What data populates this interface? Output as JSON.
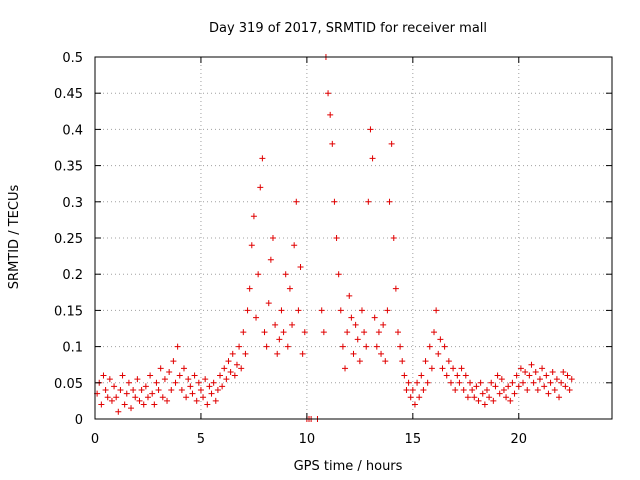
{
  "chart_data": {
    "type": "scatter",
    "title": "Day 319 of 2017, SRMTID for receiver mall",
    "xlabel": "GPS time / hours",
    "ylabel": "SRMTID / TECUs",
    "xlim": [
      0,
      24.4
    ],
    "ylim": [
      0,
      0.5
    ],
    "x_ticks": [
      "0",
      "5",
      "10",
      "15",
      "20"
    ],
    "x_tick_values": [
      0,
      5,
      10,
      15,
      20
    ],
    "y_ticks": [
      "0",
      "0.05",
      "0.1",
      "0.15",
      "0.2",
      "0.25",
      "0.3",
      "0.35",
      "0.4",
      "0.45",
      "0.5"
    ],
    "y_tick_values": [
      0,
      0.05,
      0.1,
      0.15,
      0.2,
      0.25,
      0.3,
      0.35,
      0.4,
      0.45,
      0.5
    ],
    "grid": true,
    "marker": "+",
    "series_color": "#e00000",
    "series": [
      {
        "name": "SRMTID",
        "points": [
          [
            0.1,
            0.035
          ],
          [
            0.2,
            0.05
          ],
          [
            0.3,
            0.02
          ],
          [
            0.4,
            0.06
          ],
          [
            0.5,
            0.04
          ],
          [
            0.6,
            0.03
          ],
          [
            0.7,
            0.055
          ],
          [
            0.8,
            0.025
          ],
          [
            0.9,
            0.045
          ],
          [
            1.0,
            0.03
          ],
          [
            1.1,
            0.01
          ],
          [
            1.2,
            0.04
          ],
          [
            1.3,
            0.06
          ],
          [
            1.4,
            0.02
          ],
          [
            1.5,
            0.035
          ],
          [
            1.6,
            0.05
          ],
          [
            1.7,
            0.015
          ],
          [
            1.8,
            0.04
          ],
          [
            1.9,
            0.03
          ],
          [
            2.0,
            0.055
          ],
          [
            2.1,
            0.025
          ],
          [
            2.2,
            0.04
          ],
          [
            2.3,
            0.02
          ],
          [
            2.4,
            0.045
          ],
          [
            2.5,
            0.03
          ],
          [
            2.6,
            0.06
          ],
          [
            2.7,
            0.035
          ],
          [
            2.8,
            0.02
          ],
          [
            2.9,
            0.05
          ],
          [
            3.0,
            0.04
          ],
          [
            3.1,
            0.07
          ],
          [
            3.2,
            0.03
          ],
          [
            3.3,
            0.055
          ],
          [
            3.4,
            0.025
          ],
          [
            3.5,
            0.065
          ],
          [
            3.6,
            0.04
          ],
          [
            3.7,
            0.08
          ],
          [
            3.8,
            0.05
          ],
          [
            3.9,
            0.1
          ],
          [
            4.0,
            0.06
          ],
          [
            4.1,
            0.04
          ],
          [
            4.2,
            0.07
          ],
          [
            4.3,
            0.03
          ],
          [
            4.4,
            0.055
          ],
          [
            4.5,
            0.045
          ],
          [
            4.6,
            0.035
          ],
          [
            4.7,
            0.06
          ],
          [
            4.8,
            0.025
          ],
          [
            4.9,
            0.05
          ],
          [
            5.0,
            0.04
          ],
          [
            5.1,
            0.03
          ],
          [
            5.2,
            0.055
          ],
          [
            5.3,
            0.02
          ],
          [
            5.4,
            0.045
          ],
          [
            5.5,
            0.035
          ],
          [
            5.6,
            0.05
          ],
          [
            5.7,
            0.025
          ],
          [
            5.8,
            0.04
          ],
          [
            5.9,
            0.06
          ],
          [
            6.0,
            0.045
          ],
          [
            6.1,
            0.07
          ],
          [
            6.2,
            0.055
          ],
          [
            6.3,
            0.08
          ],
          [
            6.4,
            0.065
          ],
          [
            6.5,
            0.09
          ],
          [
            6.6,
            0.06
          ],
          [
            6.7,
            0.075
          ],
          [
            6.8,
            0.1
          ],
          [
            6.9,
            0.07
          ],
          [
            7.0,
            0.12
          ],
          [
            7.1,
            0.09
          ],
          [
            7.2,
            0.15
          ],
          [
            7.3,
            0.18
          ],
          [
            7.4,
            0.24
          ],
          [
            7.5,
            0.28
          ],
          [
            7.6,
            0.14
          ],
          [
            7.7,
            0.2
          ],
          [
            7.8,
            0.32
          ],
          [
            7.9,
            0.36
          ],
          [
            8.0,
            0.12
          ],
          [
            8.1,
            0.1
          ],
          [
            8.2,
            0.16
          ],
          [
            8.3,
            0.22
          ],
          [
            8.4,
            0.25
          ],
          [
            8.5,
            0.13
          ],
          [
            8.6,
            0.09
          ],
          [
            8.7,
            0.11
          ],
          [
            8.8,
            0.15
          ],
          [
            8.9,
            0.12
          ],
          [
            9.0,
            0.2
          ],
          [
            9.1,
            0.1
          ],
          [
            9.2,
            0.18
          ],
          [
            9.3,
            0.13
          ],
          [
            9.4,
            0.24
          ],
          [
            9.5,
            0.3
          ],
          [
            9.6,
            0.15
          ],
          [
            9.7,
            0.21
          ],
          [
            9.8,
            0.09
          ],
          [
            9.9,
            0.12
          ],
          [
            10.0,
            0.0
          ],
          [
            10.1,
            0.0
          ],
          [
            10.2,
            0.0
          ],
          [
            10.5,
            0.0
          ],
          [
            10.7,
            0.15
          ],
          [
            10.8,
            0.12
          ],
          [
            10.9,
            0.5
          ],
          [
            11.0,
            0.45
          ],
          [
            11.1,
            0.42
          ],
          [
            11.2,
            0.38
          ],
          [
            11.3,
            0.3
          ],
          [
            11.4,
            0.25
          ],
          [
            11.5,
            0.2
          ],
          [
            11.6,
            0.15
          ],
          [
            11.7,
            0.1
          ],
          [
            11.8,
            0.07
          ],
          [
            11.9,
            0.12
          ],
          [
            12.0,
            0.17
          ],
          [
            12.1,
            0.14
          ],
          [
            12.2,
            0.09
          ],
          [
            12.3,
            0.13
          ],
          [
            12.4,
            0.11
          ],
          [
            12.5,
            0.08
          ],
          [
            12.6,
            0.15
          ],
          [
            12.7,
            0.12
          ],
          [
            12.8,
            0.1
          ],
          [
            12.9,
            0.3
          ],
          [
            13.0,
            0.4
          ],
          [
            13.1,
            0.36
          ],
          [
            13.2,
            0.14
          ],
          [
            13.3,
            0.1
          ],
          [
            13.4,
            0.12
          ],
          [
            13.5,
            0.09
          ],
          [
            13.6,
            0.13
          ],
          [
            13.7,
            0.08
          ],
          [
            13.8,
            0.15
          ],
          [
            13.9,
            0.3
          ],
          [
            14.0,
            0.38
          ],
          [
            14.1,
            0.25
          ],
          [
            14.2,
            0.18
          ],
          [
            14.3,
            0.12
          ],
          [
            14.4,
            0.1
          ],
          [
            14.5,
            0.08
          ],
          [
            14.6,
            0.06
          ],
          [
            14.7,
            0.04
          ],
          [
            14.8,
            0.05
          ],
          [
            14.9,
            0.03
          ],
          [
            15.0,
            0.04
          ],
          [
            15.1,
            0.02
          ],
          [
            15.2,
            0.05
          ],
          [
            15.3,
            0.03
          ],
          [
            15.4,
            0.06
          ],
          [
            15.5,
            0.04
          ],
          [
            15.6,
            0.08
          ],
          [
            15.7,
            0.05
          ],
          [
            15.8,
            0.1
          ],
          [
            15.9,
            0.07
          ],
          [
            16.0,
            0.12
          ],
          [
            16.1,
            0.15
          ],
          [
            16.2,
            0.09
          ],
          [
            16.3,
            0.11
          ],
          [
            16.4,
            0.07
          ],
          [
            16.5,
            0.1
          ],
          [
            16.6,
            0.06
          ],
          [
            16.7,
            0.08
          ],
          [
            16.8,
            0.05
          ],
          [
            16.9,
            0.07
          ],
          [
            17.0,
            0.04
          ],
          [
            17.1,
            0.06
          ],
          [
            17.2,
            0.05
          ],
          [
            17.3,
            0.07
          ],
          [
            17.4,
            0.04
          ],
          [
            17.5,
            0.06
          ],
          [
            17.6,
            0.03
          ],
          [
            17.7,
            0.05
          ],
          [
            17.8,
            0.04
          ],
          [
            17.9,
            0.03
          ],
          [
            18.0,
            0.045
          ],
          [
            18.1,
            0.025
          ],
          [
            18.2,
            0.05
          ],
          [
            18.3,
            0.035
          ],
          [
            18.4,
            0.02
          ],
          [
            18.5,
            0.04
          ],
          [
            18.6,
            0.03
          ],
          [
            18.7,
            0.05
          ],
          [
            18.8,
            0.025
          ],
          [
            18.9,
            0.045
          ],
          [
            19.0,
            0.06
          ],
          [
            19.1,
            0.035
          ],
          [
            19.2,
            0.055
          ],
          [
            19.3,
            0.04
          ],
          [
            19.4,
            0.03
          ],
          [
            19.5,
            0.045
          ],
          [
            19.6,
            0.025
          ],
          [
            19.7,
            0.05
          ],
          [
            19.8,
            0.035
          ],
          [
            19.9,
            0.06
          ],
          [
            20.0,
            0.045
          ],
          [
            20.1,
            0.07
          ],
          [
            20.2,
            0.05
          ],
          [
            20.3,
            0.065
          ],
          [
            20.4,
            0.04
          ],
          [
            20.5,
            0.06
          ],
          [
            20.6,
            0.075
          ],
          [
            20.7,
            0.05
          ],
          [
            20.8,
            0.065
          ],
          [
            20.9,
            0.04
          ],
          [
            21.0,
            0.055
          ],
          [
            21.1,
            0.07
          ],
          [
            21.2,
            0.045
          ],
          [
            21.3,
            0.06
          ],
          [
            21.4,
            0.035
          ],
          [
            21.5,
            0.05
          ],
          [
            21.6,
            0.065
          ],
          [
            21.7,
            0.04
          ],
          [
            21.8,
            0.055
          ],
          [
            21.9,
            0.03
          ],
          [
            22.0,
            0.05
          ],
          [
            22.1,
            0.065
          ],
          [
            22.2,
            0.045
          ],
          [
            22.3,
            0.06
          ],
          [
            22.4,
            0.04
          ],
          [
            22.5,
            0.055
          ]
        ]
      }
    ]
  }
}
